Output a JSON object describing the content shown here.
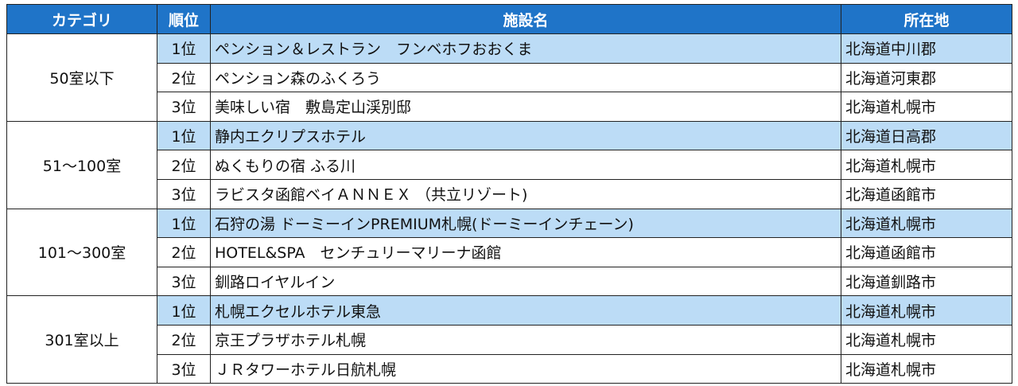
{
  "headers": {
    "category": "カテゴリ",
    "rank": "順位",
    "facility": "施設名",
    "location": "所在地"
  },
  "groups": [
    {
      "category": "50室以下",
      "rows": [
        {
          "rank": "1位",
          "name": "ペンション＆レストラン　フンベホフおおくま",
          "location": "北海道中川郡"
        },
        {
          "rank": "2位",
          "name": "ペンション森のふくろう",
          "location": "北海道河東郡"
        },
        {
          "rank": "3位",
          "name": "美味しい宿　敷島定山渓別邸",
          "location": "北海道札幌市"
        }
      ]
    },
    {
      "category": "51～100室",
      "rows": [
        {
          "rank": "1位",
          "name": "静内エクリプスホテル",
          "location": "北海道日高郡"
        },
        {
          "rank": "2位",
          "name": "ぬくもりの宿 ふる川",
          "location": "北海道札幌市"
        },
        {
          "rank": "3位",
          "name": "ラビスタ函館ベイＡＮＮＥＸ （共立リゾート)",
          "location": "北海道函館市"
        }
      ]
    },
    {
      "category": "101～300室",
      "rows": [
        {
          "rank": "1位",
          "name": "石狩の湯 ドーミーインPREMIUM札幌(ドーミーインチェーン)",
          "location": "北海道札幌市"
        },
        {
          "rank": "2位",
          "name": "HOTEL&SPA　センチュリーマリーナ函館",
          "location": "北海道函館市"
        },
        {
          "rank": "3位",
          "name": "釧路ロイヤルイン",
          "location": "北海道釧路市"
        }
      ]
    },
    {
      "category": "301室以上",
      "rows": [
        {
          "rank": "1位",
          "name": "札幌エクセルホテル東急",
          "location": "北海道札幌市"
        },
        {
          "rank": "2位",
          "name": "京王プラザホテル札幌",
          "location": "北海道札幌市"
        },
        {
          "rank": "3位",
          "name": "ＪＲタワーホテル日航札幌",
          "location": "北海道札幌市"
        }
      ]
    }
  ]
}
